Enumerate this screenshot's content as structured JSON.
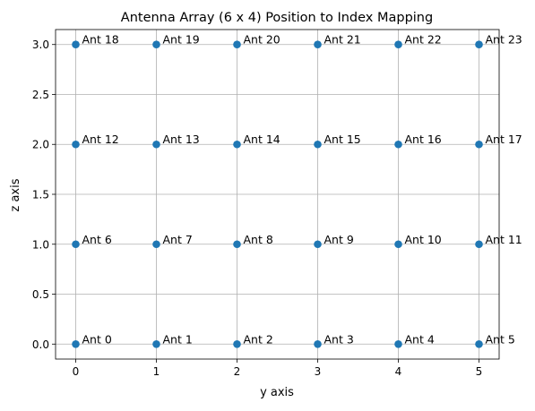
{
  "chart_data": {
    "type": "scatter",
    "title": "Antenna Array (6 x 4) Position to Index Mapping",
    "xlabel": "y axis",
    "ylabel": "z axis",
    "xlim": [
      -0.25,
      5.25
    ],
    "ylim": [
      -0.15,
      3.15
    ],
    "xticks": [
      0,
      1,
      2,
      3,
      4,
      5
    ],
    "xtick_labels": [
      "0",
      "1",
      "2",
      "3",
      "4",
      "5"
    ],
    "yticks": [
      0,
      0.5,
      1,
      1.5,
      2,
      2.5,
      3
    ],
    "ytick_labels": [
      "0.0",
      "0.5",
      "1.0",
      "1.5",
      "2.0",
      "2.5",
      "3.0"
    ],
    "grid": true,
    "marker_color": "#1f77b4",
    "points": [
      {
        "x": 0,
        "y": 0,
        "label": "Ant 0"
      },
      {
        "x": 1,
        "y": 0,
        "label": "Ant 1"
      },
      {
        "x": 2,
        "y": 0,
        "label": "Ant 2"
      },
      {
        "x": 3,
        "y": 0,
        "label": "Ant 3"
      },
      {
        "x": 4,
        "y": 0,
        "label": "Ant 4"
      },
      {
        "x": 5,
        "y": 0,
        "label": "Ant 5"
      },
      {
        "x": 0,
        "y": 1,
        "label": "Ant 6"
      },
      {
        "x": 1,
        "y": 1,
        "label": "Ant 7"
      },
      {
        "x": 2,
        "y": 1,
        "label": "Ant 8"
      },
      {
        "x": 3,
        "y": 1,
        "label": "Ant 9"
      },
      {
        "x": 4,
        "y": 1,
        "label": "Ant 10"
      },
      {
        "x": 5,
        "y": 1,
        "label": "Ant 11"
      },
      {
        "x": 0,
        "y": 2,
        "label": "Ant 12"
      },
      {
        "x": 1,
        "y": 2,
        "label": "Ant 13"
      },
      {
        "x": 2,
        "y": 2,
        "label": "Ant 14"
      },
      {
        "x": 3,
        "y": 2,
        "label": "Ant 15"
      },
      {
        "x": 4,
        "y": 2,
        "label": "Ant 16"
      },
      {
        "x": 5,
        "y": 2,
        "label": "Ant 17"
      },
      {
        "x": 0,
        "y": 3,
        "label": "Ant 18"
      },
      {
        "x": 1,
        "y": 3,
        "label": "Ant 19"
      },
      {
        "x": 2,
        "y": 3,
        "label": "Ant 20"
      },
      {
        "x": 3,
        "y": 3,
        "label": "Ant 21"
      },
      {
        "x": 4,
        "y": 3,
        "label": "Ant 22"
      },
      {
        "x": 5,
        "y": 3,
        "label": "Ant 23"
      }
    ]
  }
}
